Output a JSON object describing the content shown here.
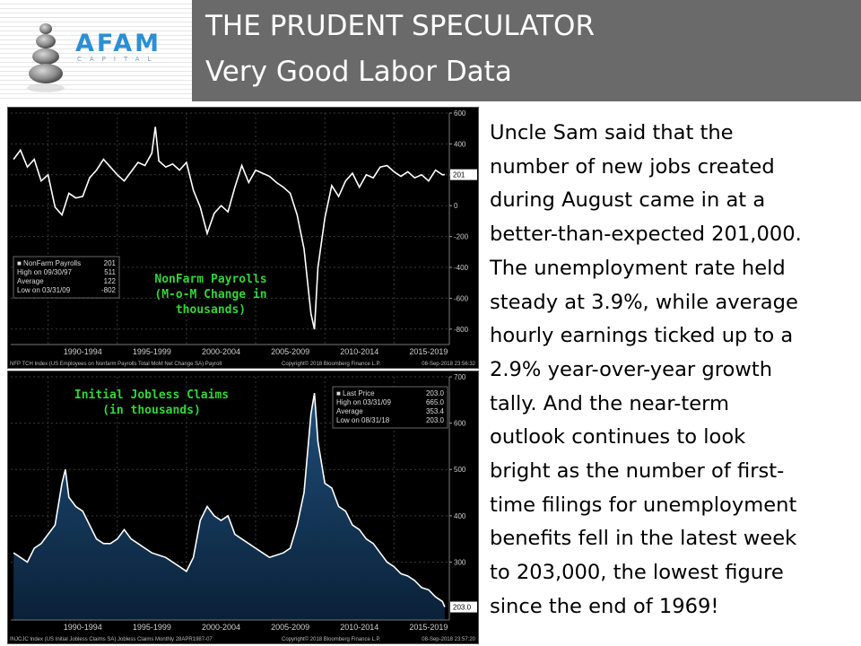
{
  "header": {
    "title_line1": "THE PRUDENT SPECULATOR",
    "title_line2": "Very Good Labor Data",
    "logo_name": "AFAM",
    "logo_sub": "CAPITAL",
    "colors": {
      "bar": "#6a6a6a",
      "logo": "#2a8fd6"
    }
  },
  "body_text": "Uncle Sam said that the\nnumber of new jobs created\nduring August came in at a\nbetter-than-expected 201,000.\nThe unemployment rate held\nsteady at 3.9%, while average\nhourly earnings ticked up to a\n2.9% year-over-year growth\ntally. And the near-term\noutlook continues to look\nbright as the number of first-\ntime filings for unemployment\nbenefits fell in the latest week\nto 203,000, the lowest figure\nsince the end of 1969!",
  "chart_data": [
    {
      "type": "line",
      "title": "NonFarm Payrolls\n(M-o-M Change in\nthousands)",
      "ylim": [
        -900,
        600
      ],
      "y_ticks": [
        600,
        400,
        200,
        0,
        -200,
        -400,
        -600,
        -800
      ],
      "x_tick_labels": [
        "1990-1994",
        "1995-1999",
        "2000-2004",
        "2005-2009",
        "2010-2014",
        "2015-2019"
      ],
      "last_value_label": "201",
      "legend": [
        {
          "label": "NonFarm Payrolls",
          "value": "201"
        },
        {
          "label": "High on 09/30/97",
          "value": "511"
        },
        {
          "label": "Average",
          "value": "122"
        },
        {
          "label": "Low on 03/31/09",
          "value": "-802"
        }
      ],
      "footer": "NFP TCH Index (US Employees on Nonfarm Payrolls Total MoM Net Change SA) Payroll",
      "copyright": "Copyright© 2018 Bloomberg Finance L.P.",
      "timestamp": "08-Sep-2018 23:56:32",
      "grid": true,
      "series": [
        {
          "x": [
            1987.5,
            1988.0,
            1988.5,
            1989.0,
            1989.5,
            1990.0,
            1990.5,
            1991.0,
            1991.5,
            1992.0,
            1992.5,
            1993.0,
            1993.5,
            1994.0,
            1994.5,
            1995.0,
            1995.5,
            1996.0,
            1996.5,
            1997.0,
            1997.5,
            1997.75,
            1998.0,
            1998.5,
            1999.0,
            1999.5,
            2000.0,
            2000.5,
            2001.0,
            2001.5,
            2002.0,
            2002.5,
            2003.0,
            2003.5,
            2004.0,
            2004.5,
            2005.0,
            2005.5,
            2006.0,
            2006.5,
            2007.0,
            2007.5,
            2008.0,
            2008.5,
            2009.0,
            2009.25,
            2009.5,
            2010.0,
            2010.5,
            2011.0,
            2011.5,
            2012.0,
            2012.5,
            2013.0,
            2013.5,
            2014.0,
            2014.5,
            2015.0,
            2015.5,
            2016.0,
            2016.5,
            2017.0,
            2017.5,
            2018.0,
            2018.5,
            2018.67
          ],
          "values": [
            300,
            360,
            250,
            300,
            160,
            200,
            -10,
            -60,
            80,
            50,
            60,
            180,
            230,
            300,
            250,
            200,
            160,
            220,
            280,
            260,
            340,
            511,
            290,
            250,
            270,
            230,
            280,
            100,
            -10,
            -180,
            -50,
            0,
            -40,
            120,
            260,
            150,
            230,
            210,
            190,
            150,
            120,
            80,
            -60,
            -280,
            -700,
            -802,
            -400,
            -80,
            130,
            60,
            160,
            210,
            120,
            200,
            180,
            250,
            260,
            220,
            190,
            220,
            180,
            200,
            160,
            230,
            200,
            201
          ]
        }
      ]
    },
    {
      "type": "area",
      "title": "Initial Jobless Claims\n(in thousands)",
      "ylim": [
        175,
        700
      ],
      "y_ticks": [
        700,
        600,
        500,
        400,
        300
      ],
      "x_tick_labels": [
        "1990-1994",
        "1995-1999",
        "2000-2004",
        "2005-2009",
        "2010-2014",
        "2015-2019"
      ],
      "last_value_label": "203.0",
      "legend": [
        {
          "label": "Last Price",
          "value": "203.0"
        },
        {
          "label": "High on 03/31/09",
          "value": "665.0"
        },
        {
          "label": "Average",
          "value": "353.4"
        },
        {
          "label": "Low on 08/31/18",
          "value": "203.0"
        }
      ],
      "footer": "INJCJC Index (US Initial Jobless Claims SA) Jobless Claims Monthly 28APR1987-07",
      "copyright": "Copyright© 2018 Bloomberg Finance L.P.",
      "timestamp": "08-Sep-2018 23:57:20",
      "grid": true,
      "series": [
        {
          "x": [
            1987.5,
            1988.0,
            1988.5,
            1989.0,
            1989.5,
            1990.0,
            1990.5,
            1991.0,
            1991.25,
            1991.5,
            1992.0,
            1992.5,
            1993.0,
            1993.5,
            1994.0,
            1994.5,
            1995.0,
            1995.5,
            1996.0,
            1996.5,
            1997.0,
            1997.5,
            1998.0,
            1998.5,
            1999.0,
            1999.5,
            2000.0,
            2000.5,
            2001.0,
            2001.5,
            2002.0,
            2002.5,
            2003.0,
            2003.5,
            2004.0,
            2004.5,
            2005.0,
            2005.5,
            2006.0,
            2006.5,
            2007.0,
            2007.5,
            2008.0,
            2008.5,
            2009.0,
            2009.25,
            2009.5,
            2010.0,
            2010.5,
            2011.0,
            2011.5,
            2012.0,
            2012.5,
            2013.0,
            2013.5,
            2014.0,
            2014.5,
            2015.0,
            2015.5,
            2016.0,
            2016.5,
            2017.0,
            2017.5,
            2018.0,
            2018.5,
            2018.67
          ],
          "values": [
            320,
            310,
            300,
            330,
            340,
            360,
            380,
            470,
            500,
            440,
            420,
            410,
            380,
            350,
            340,
            340,
            350,
            370,
            350,
            340,
            330,
            320,
            315,
            310,
            300,
            290,
            280,
            310,
            390,
            420,
            400,
            390,
            400,
            360,
            350,
            340,
            330,
            320,
            310,
            315,
            320,
            330,
            380,
            450,
            620,
            665,
            560,
            470,
            460,
            420,
            410,
            380,
            370,
            350,
            340,
            320,
            300,
            290,
            275,
            270,
            260,
            245,
            240,
            225,
            215,
            203
          ]
        }
      ]
    }
  ]
}
